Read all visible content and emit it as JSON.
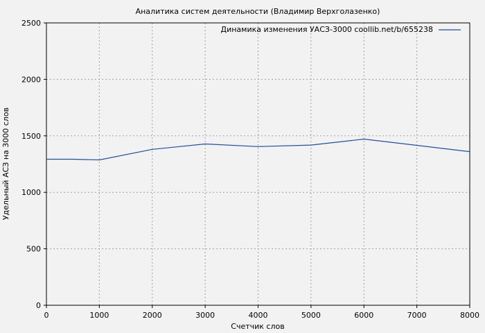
{
  "chart_data": {
    "type": "line",
    "title": "Аналитика систем деятельности (Владимир Верхголазенко)",
    "xlabel": "Счетчик слов",
    "ylabel": "Удельный АСЗ на 3000 слов",
    "xlim": [
      0,
      8000
    ],
    "ylim": [
      0,
      2500
    ],
    "xticks": [
      0,
      1000,
      2000,
      3000,
      4000,
      5000,
      6000,
      7000,
      8000
    ],
    "yticks": [
      0,
      500,
      1000,
      1500,
      2000,
      2500
    ],
    "grid": true,
    "legend_position": "top-right",
    "series": [
      {
        "name": "Динамика изменения УАСЗ-3000 coollib.net/b/655238",
        "color": "#1f4e9c",
        "x": [
          0,
          500,
          1000,
          2000,
          3000,
          4000,
          5000,
          6000,
          7000,
          8000
        ],
        "y": [
          1293,
          1293,
          1287,
          1380,
          1428,
          1405,
          1418,
          1471,
          1416,
          1360
        ]
      }
    ]
  }
}
